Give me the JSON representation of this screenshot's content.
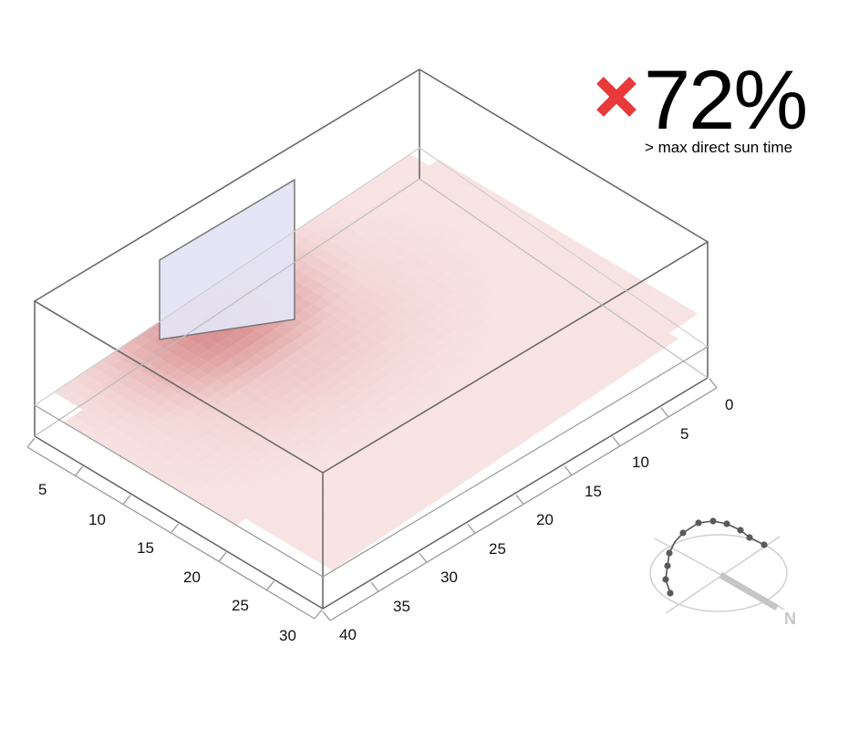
{
  "metric": {
    "value": "72%",
    "caption": "> max direct sun time",
    "status_icon": "cross-icon",
    "status_color": "#e8393b"
  },
  "axes": {
    "left_ticks": [
      "5",
      "10",
      "15",
      "20",
      "25",
      "30"
    ],
    "right_ticks": [
      "0",
      "5",
      "10",
      "15",
      "20",
      "25",
      "30",
      "35",
      "40"
    ]
  },
  "compass": {
    "north_label": "N",
    "sun_path_icon": "sun-path-icon"
  },
  "colors": {
    "heat_low": "#f6dada",
    "heat_high": "#cc6a6a",
    "window": "#e4e4f4",
    "frame": "#666666"
  }
}
